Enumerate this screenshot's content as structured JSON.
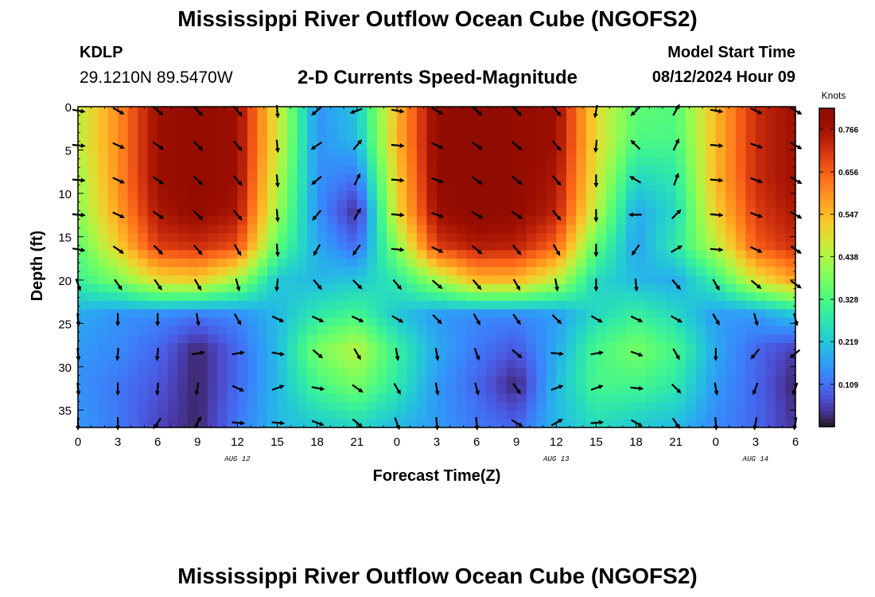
{
  "header": {
    "title": "Mississippi River Outflow Ocean Cube (NGOFS2)",
    "station_id": "KDLP",
    "station_coords": "29.1210N  89.5470W",
    "subtitle": "2-D Currents Speed-Magnitude",
    "model_start_label": "Model Start Time",
    "model_start_time": "08/12/2024 Hour 09"
  },
  "footer": {
    "title": "Mississippi River Outflow Ocean Cube (NGOFS2)"
  },
  "chart_data": {
    "type": "heatmap",
    "title": "2-D Currents Speed-Magnitude",
    "xlabel": "Forecast Time(Z)",
    "ylabel": "Depth (ft)",
    "x_tick_labels": [
      "0",
      "3",
      "6",
      "9",
      "12",
      "15",
      "18",
      "21",
      "0",
      "3",
      "6",
      "9",
      "12",
      "15",
      "18",
      "21",
      "0",
      "3",
      "6"
    ],
    "x_hours": [
      0,
      3,
      6,
      9,
      12,
      15,
      18,
      21,
      24,
      27,
      30,
      33,
      36,
      39,
      42,
      45,
      48,
      51,
      54
    ],
    "date_labels": [
      {
        "label": "AUG 12",
        "hour": 12
      },
      {
        "label": "AUG 13",
        "hour": 36
      },
      {
        "label": "AUG 14",
        "hour": 51
      }
    ],
    "xlim": [
      0,
      54
    ],
    "y_ticks": [
      0,
      5,
      10,
      15,
      20,
      25,
      30,
      35
    ],
    "ylim": [
      0,
      37
    ],
    "y_inverted": true,
    "colorbar": {
      "unit_label": "Knots",
      "tick_labels": [
        "0.766",
        "0.656",
        "0.547",
        "0.438",
        "0.328",
        "0.219",
        "0.109"
      ],
      "tick_values": [
        0.766,
        0.656,
        0.547,
        0.438,
        0.328,
        0.219,
        0.109
      ],
      "range": [
        0.0,
        0.82
      ],
      "colormap": "turbo"
    },
    "speed_grid": {
      "hours": [
        0,
        3,
        6,
        9,
        12,
        15,
        18,
        21,
        24,
        27,
        30,
        33,
        36,
        39,
        42,
        45,
        48,
        51,
        54
      ],
      "depths": [
        0,
        4,
        8,
        12,
        16,
        20,
        24,
        28,
        32,
        37
      ],
      "values": [
        [
          0.45,
          0.6,
          0.78,
          0.8,
          0.78,
          0.48,
          0.15,
          0.22,
          0.55,
          0.8,
          0.82,
          0.8,
          0.78,
          0.5,
          0.35,
          0.34,
          0.55,
          0.72,
          0.78
        ],
        [
          0.45,
          0.6,
          0.78,
          0.8,
          0.78,
          0.48,
          0.15,
          0.2,
          0.55,
          0.8,
          0.82,
          0.8,
          0.78,
          0.5,
          0.33,
          0.32,
          0.55,
          0.72,
          0.78
        ],
        [
          0.42,
          0.6,
          0.78,
          0.8,
          0.78,
          0.45,
          0.15,
          0.12,
          0.52,
          0.8,
          0.82,
          0.8,
          0.76,
          0.48,
          0.25,
          0.28,
          0.55,
          0.72,
          0.78
        ],
        [
          0.4,
          0.58,
          0.76,
          0.8,
          0.76,
          0.42,
          0.15,
          0.03,
          0.5,
          0.78,
          0.82,
          0.8,
          0.74,
          0.45,
          0.18,
          0.25,
          0.52,
          0.7,
          0.76
        ],
        [
          0.35,
          0.52,
          0.7,
          0.72,
          0.68,
          0.35,
          0.18,
          0.1,
          0.4,
          0.7,
          0.75,
          0.74,
          0.65,
          0.35,
          0.17,
          0.28,
          0.45,
          0.66,
          0.72
        ],
        [
          0.3,
          0.38,
          0.5,
          0.52,
          0.42,
          0.22,
          0.2,
          0.22,
          0.28,
          0.42,
          0.55,
          0.55,
          0.45,
          0.25,
          0.2,
          0.18,
          0.3,
          0.48,
          0.58
        ],
        [
          0.18,
          0.15,
          0.14,
          0.12,
          0.14,
          0.2,
          0.28,
          0.32,
          0.22,
          0.16,
          0.14,
          0.14,
          0.16,
          0.25,
          0.3,
          0.25,
          0.16,
          0.16,
          0.22
        ],
        [
          0.16,
          0.14,
          0.1,
          0.02,
          0.1,
          0.2,
          0.38,
          0.45,
          0.3,
          0.18,
          0.12,
          0.08,
          0.18,
          0.32,
          0.38,
          0.32,
          0.18,
          0.1,
          0.05
        ],
        [
          0.15,
          0.12,
          0.08,
          0.02,
          0.1,
          0.2,
          0.32,
          0.38,
          0.28,
          0.16,
          0.1,
          0.02,
          0.2,
          0.32,
          0.32,
          0.28,
          0.16,
          0.1,
          0.02
        ],
        [
          0.16,
          0.12,
          0.06,
          0.02,
          0.12,
          0.2,
          0.22,
          0.24,
          0.2,
          0.16,
          0.12,
          0.1,
          0.2,
          0.25,
          0.22,
          0.2,
          0.14,
          0.1,
          0.04
        ]
      ]
    },
    "direction_vectors": {
      "hours": [
        0,
        3,
        6,
        9,
        12,
        15,
        18,
        21,
        24,
        27,
        30,
        33,
        36,
        39,
        42,
        45,
        48,
        51,
        54
      ],
      "depths": [
        0,
        4,
        8,
        12,
        16,
        20,
        24,
        28,
        32,
        36
      ],
      "direction_deg": [
        [
          100,
          120,
          130,
          135,
          140,
          175,
          230,
          250,
          100,
          120,
          130,
          135,
          140,
          190,
          225,
          30,
          100,
          115,
          120
        ],
        [
          95,
          115,
          125,
          135,
          140,
          175,
          235,
          40,
          95,
          115,
          125,
          130,
          140,
          185,
          315,
          25,
          95,
          110,
          120
        ],
        [
          95,
          115,
          125,
          135,
          140,
          175,
          230,
          25,
          95,
          110,
          125,
          130,
          140,
          180,
          300,
          20,
          95,
          110,
          120
        ],
        [
          95,
          115,
          125,
          135,
          140,
          175,
          220,
          30,
          95,
          110,
          120,
          125,
          140,
          180,
          270,
          45,
          95,
          110,
          120
        ],
        [
          100,
          125,
          135,
          140,
          150,
          175,
          210,
          215,
          95,
          115,
          130,
          140,
          150,
          180,
          215,
          60,
          95,
          115,
          125
        ],
        [
          160,
          145,
          145,
          150,
          165,
          185,
          140,
          135,
          140,
          130,
          140,
          150,
          170,
          180,
          175,
          140,
          150,
          130,
          125
        ],
        [
          175,
          180,
          180,
          170,
          150,
          115,
          115,
          115,
          120,
          135,
          150,
          145,
          135,
          120,
          115,
          120,
          150,
          165,
          165
        ],
        [
          175,
          185,
          185,
          80,
          80,
          100,
          130,
          150,
          170,
          170,
          160,
          130,
          95,
          80,
          110,
          150,
          180,
          220,
          230
        ],
        [
          175,
          180,
          185,
          190,
          115,
          70,
          100,
          125,
          150,
          170,
          165,
          145,
          70,
          70,
          95,
          135,
          170,
          200,
          200
        ],
        [
          180,
          180,
          215,
          30,
          95,
          95,
          110,
          130,
          160,
          175,
          175,
          120,
          60,
          85,
          120,
          145,
          175,
          190,
          190
        ]
      ]
    },
    "grid": false
  }
}
